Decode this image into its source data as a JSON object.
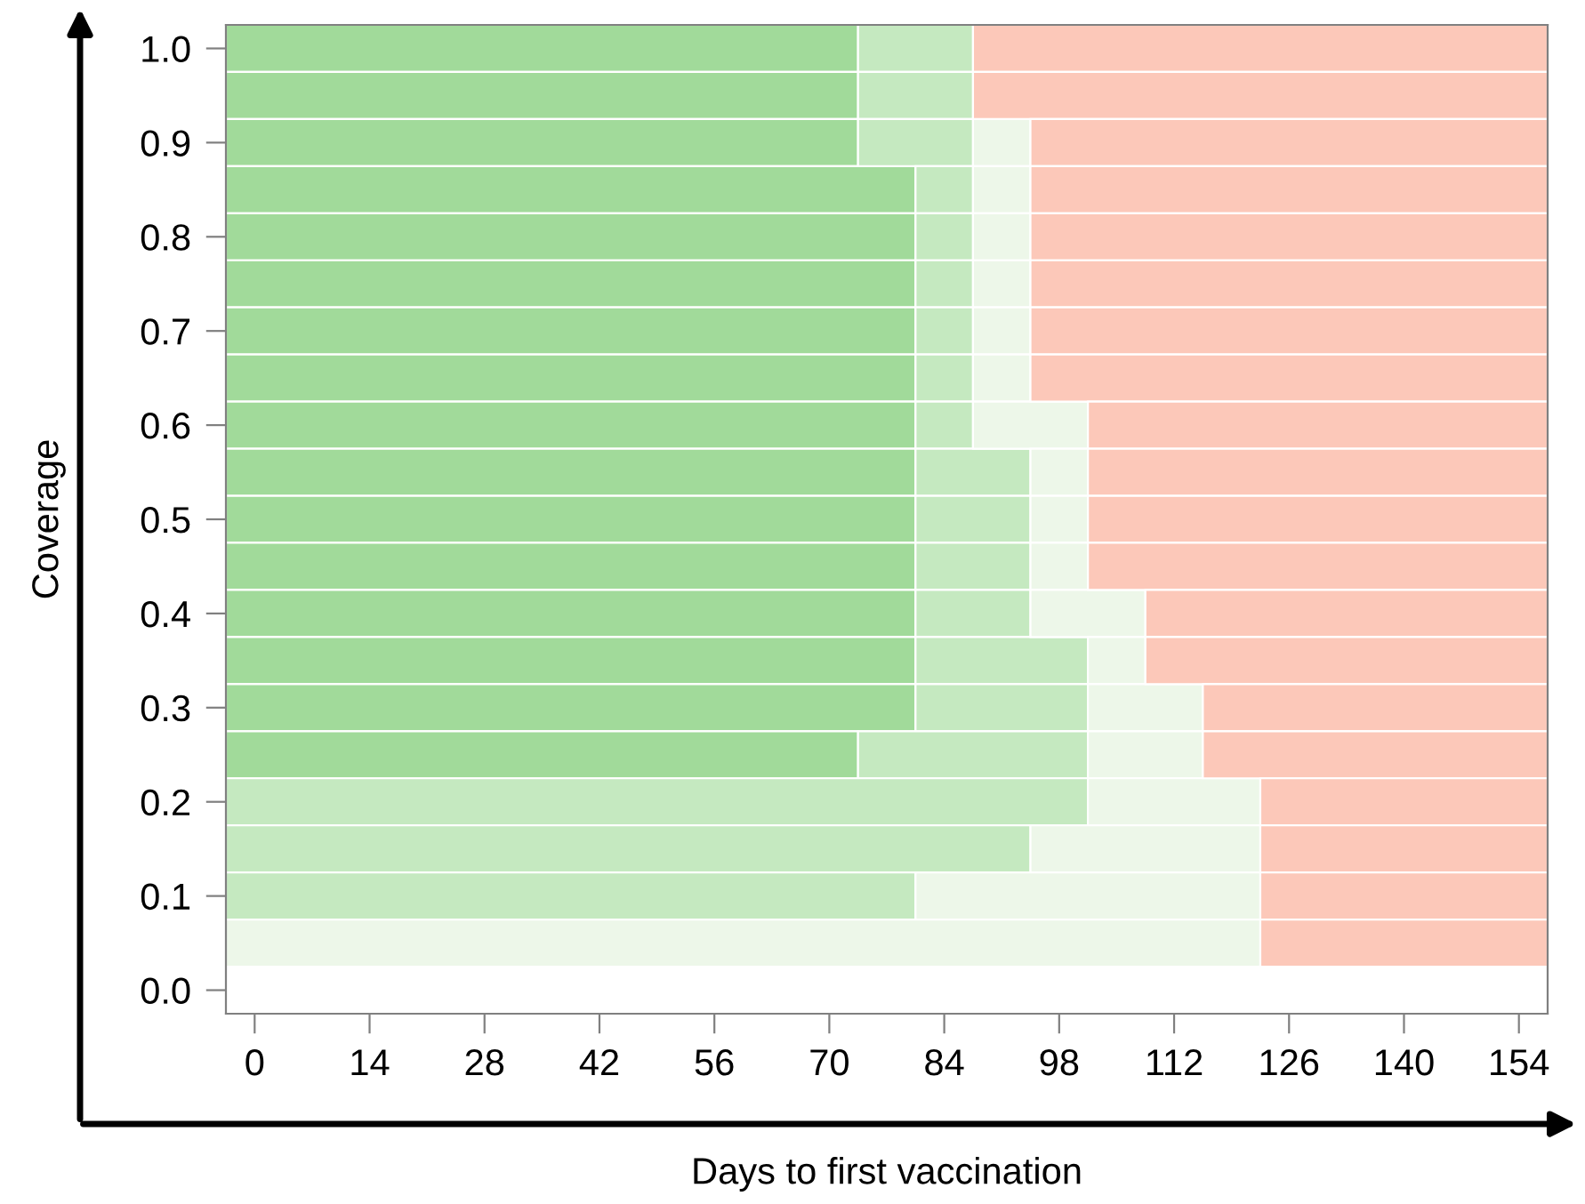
{
  "chart_data": {
    "type": "bar",
    "orientation": "horizontal",
    "xlabel": "Days to first vaccination",
    "ylabel": "Coverage",
    "categories": [
      "1.0",
      null,
      "0.9",
      null,
      "0.8",
      null,
      "0.7",
      null,
      "0.6",
      null,
      "0.5",
      null,
      "0.4",
      null,
      "0.3",
      null,
      "0.2",
      null,
      "0.1",
      null,
      "0.0"
    ],
    "xlim": [
      -3.5,
      157.5
    ],
    "xticks": [
      0,
      14,
      28,
      42,
      56,
      70,
      84,
      98,
      112,
      126,
      140,
      154
    ],
    "series": [
      {
        "color": "#a1da9a",
        "values": [
          77,
          77,
          77,
          84,
          84,
          84,
          84,
          84,
          84,
          84,
          84,
          84,
          84,
          84,
          84,
          77,
          null,
          null,
          null,
          null,
          null
        ],
        "base": [
          -3.5,
          -3.5,
          -3.5,
          -3.5,
          -3.5,
          -3.5,
          -3.5,
          -3.5,
          -3.5,
          -3.5,
          -3.5,
          -3.5,
          -3.5,
          -3.5,
          -3.5,
          -3.5,
          null,
          null,
          null,
          null,
          null
        ]
      },
      {
        "color": "#c5e9c0",
        "values": [
          14,
          14,
          14,
          7,
          7,
          7,
          7,
          7,
          7,
          14,
          14,
          14,
          14,
          21,
          21,
          28,
          105,
          98,
          84,
          null,
          null
        ],
        "base": [
          73.5,
          73.5,
          73.5,
          80.5,
          80.5,
          80.5,
          80.5,
          80.5,
          80.5,
          80.5,
          80.5,
          80.5,
          80.5,
          80.5,
          80.5,
          73.5,
          -3.5,
          -3.5,
          -3.5,
          null,
          null
        ]
      },
      {
        "color": "#edf7e9",
        "values": [
          null,
          null,
          7,
          7,
          7,
          7,
          7,
          7,
          14,
          7,
          7,
          7,
          14,
          7,
          14,
          14,
          21,
          28,
          42,
          126,
          null
        ],
        "base": [
          null,
          null,
          87.5,
          87.5,
          87.5,
          87.5,
          87.5,
          87.5,
          87.5,
          94.5,
          94.5,
          94.5,
          94.5,
          101.5,
          101.5,
          101.5,
          101.5,
          94.5,
          80.5,
          -3.5,
          null
        ]
      },
      {
        "color": "#fcc8b9",
        "values": [
          70,
          70,
          63,
          63,
          63,
          63,
          63,
          63,
          56,
          56,
          56,
          56,
          49,
          49,
          42,
          42,
          35,
          35,
          35,
          35,
          null
        ],
        "base": [
          87.5,
          87.5,
          94.5,
          94.5,
          94.5,
          94.5,
          94.5,
          94.5,
          101.5,
          101.5,
          101.5,
          101.5,
          108.5,
          108.5,
          115.5,
          115.5,
          122.5,
          122.5,
          122.5,
          122.5,
          null
        ]
      }
    ]
  }
}
